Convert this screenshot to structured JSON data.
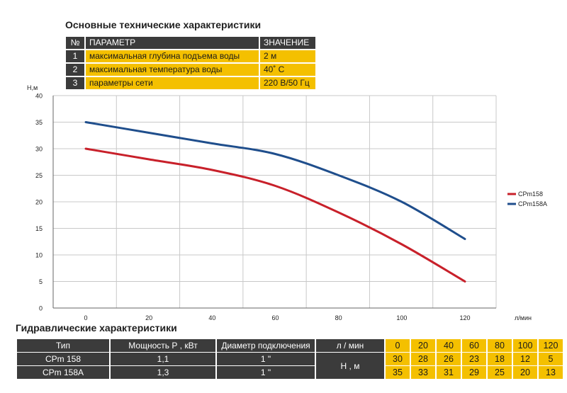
{
  "specs": {
    "title": "Основные технические характеристики",
    "headers": [
      "№",
      "ПАРАМЕТР",
      "ЗНАЧЕНИЕ"
    ],
    "rows": [
      {
        "num": "1",
        "param": "максимальная глубина подъема воды",
        "value": "2 м"
      },
      {
        "num": "2",
        "param": "максимальная температура воды",
        "value": "40˚ С"
      },
      {
        "num": "3",
        "param": "параметры сети",
        "value": "220 В/50 Гц"
      }
    ]
  },
  "chart_data": {
    "type": "line",
    "ylabel": "Н,м",
    "xlabel": "л/мин",
    "xlim": [
      0,
      120
    ],
    "ylim": [
      0,
      40
    ],
    "x_ticks": [
      0,
      20,
      40,
      60,
      80,
      100,
      120
    ],
    "y_ticks": [
      0,
      5,
      10,
      15,
      20,
      25,
      30,
      35,
      40
    ],
    "grid": true,
    "legend_position": "right",
    "x": [
      0,
      20,
      40,
      60,
      80,
      100,
      120
    ],
    "series": [
      {
        "name": "CPm158",
        "color": "#c8202a",
        "values": [
          30,
          28,
          26,
          23,
          18,
          12,
          5
        ]
      },
      {
        "name": "CPm158A",
        "color": "#1f4e8c",
        "values": [
          35,
          33,
          31,
          29,
          25,
          20,
          13
        ]
      }
    ]
  },
  "hydro": {
    "title": "Гидравлические характеристики",
    "headers": {
      "type": "Тип",
      "power": "Мощность Р , кВт",
      "diameter": "Диаметр подключения",
      "flow": "л / мин",
      "head": "Н , м"
    },
    "flow_values": [
      "0",
      "20",
      "40",
      "60",
      "80",
      "100",
      "120"
    ],
    "rows": [
      {
        "type": "CPm 158",
        "power": "1,1",
        "diameter": "1 \"",
        "heads": [
          "30",
          "28",
          "26",
          "23",
          "18",
          "12",
          "5"
        ]
      },
      {
        "type": "CPm 158A",
        "power": "1,3",
        "diameter": "1 \"",
        "heads": [
          "35",
          "33",
          "31",
          "29",
          "25",
          "20",
          "13"
        ]
      }
    ]
  }
}
